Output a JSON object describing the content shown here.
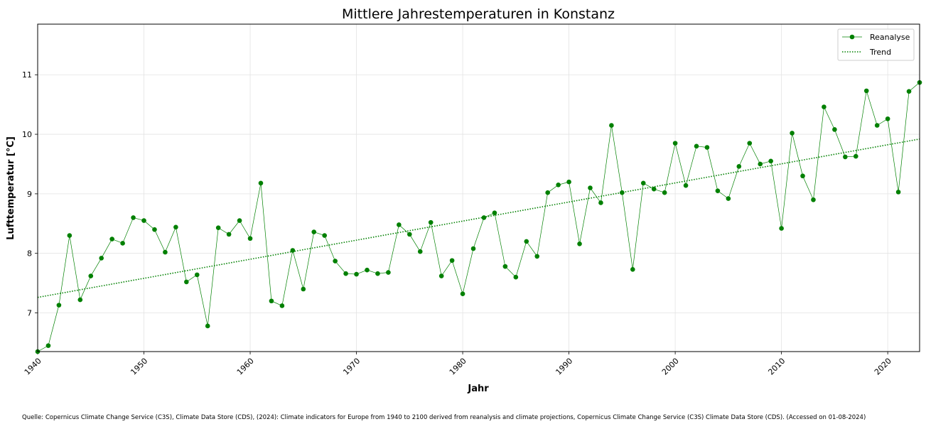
{
  "chart_data": {
    "type": "line",
    "title": "Mittlere Jahrestemperaturen in Konstanz",
    "xlabel": "Jahr",
    "ylabel": "Lufttemperatur [°C]",
    "xlim": [
      1940,
      2023
    ],
    "ylim": [
      6.35,
      11.85
    ],
    "xticks": [
      1940,
      1950,
      1960,
      1970,
      1980,
      1990,
      2000,
      2010,
      2020
    ],
    "yticks": [
      7,
      8,
      9,
      10,
      11
    ],
    "grid": true,
    "legend_position": "top-right",
    "series": [
      {
        "name": "Reanalyse",
        "color": "#008000",
        "marker": "circle",
        "x": [
          1940,
          1941,
          1942,
          1943,
          1944,
          1945,
          1946,
          1947,
          1948,
          1949,
          1950,
          1951,
          1952,
          1953,
          1954,
          1955,
          1956,
          1957,
          1958,
          1959,
          1960,
          1961,
          1962,
          1963,
          1964,
          1965,
          1966,
          1967,
          1968,
          1969,
          1970,
          1971,
          1972,
          1973,
          1974,
          1975,
          1976,
          1977,
          1978,
          1979,
          1980,
          1981,
          1982,
          1983,
          1984,
          1985,
          1986,
          1987,
          1988,
          1989,
          1990,
          1991,
          1992,
          1993,
          1994,
          1995,
          1996,
          1997,
          1998,
          1999,
          2000,
          2001,
          2002,
          2003,
          2004,
          2005,
          2006,
          2007,
          2008,
          2009,
          2010,
          2011,
          2012,
          2013,
          2014,
          2015,
          2016,
          2017,
          2018,
          2019,
          2020,
          2021,
          2022,
          2023
        ],
        "y": [
          6.35,
          6.45,
          7.13,
          8.3,
          7.22,
          7.62,
          7.92,
          8.24,
          8.17,
          8.6,
          8.55,
          8.4,
          8.02,
          8.44,
          7.52,
          7.64,
          6.78,
          8.43,
          8.32,
          8.55,
          8.25,
          9.18,
          7.2,
          7.12,
          8.05,
          7.4,
          8.36,
          8.3,
          7.87,
          7.66,
          7.65,
          7.72,
          7.66,
          7.68,
          8.48,
          8.32,
          8.03,
          8.52,
          7.62,
          7.88,
          7.32,
          8.08,
          8.6,
          8.68,
          7.78,
          7.6,
          8.2,
          7.95,
          9.02,
          9.15,
          9.2,
          8.16,
          9.1,
          8.85,
          10.15,
          9.02,
          7.73,
          9.18,
          9.08,
          9.02,
          9.85,
          9.14,
          9.8,
          9.78,
          9.05,
          8.92,
          9.46,
          9.85,
          9.5,
          9.55,
          8.42,
          10.02,
          9.3,
          8.9,
          10.46,
          10.08,
          9.62,
          9.63,
          10.73,
          10.15,
          10.26,
          9.03,
          10.72,
          10.87
        ]
      },
      {
        "name": "Trend",
        "color": "#008000",
        "style": "dotted",
        "x": [
          1940,
          2023
        ],
        "y": [
          7.26,
          9.92
        ]
      }
    ]
  },
  "source": "Quelle: Copernicus Climate Change Service (C3S), Climate Data Store (CDS), (2024): Climate indicators for Europe from 1940 to 2100 derived from reanalysis and climate projections, Copernicus Climate Change Service (C3S) Climate Data Store (CDS). (Accessed on 01-08-2024)"
}
